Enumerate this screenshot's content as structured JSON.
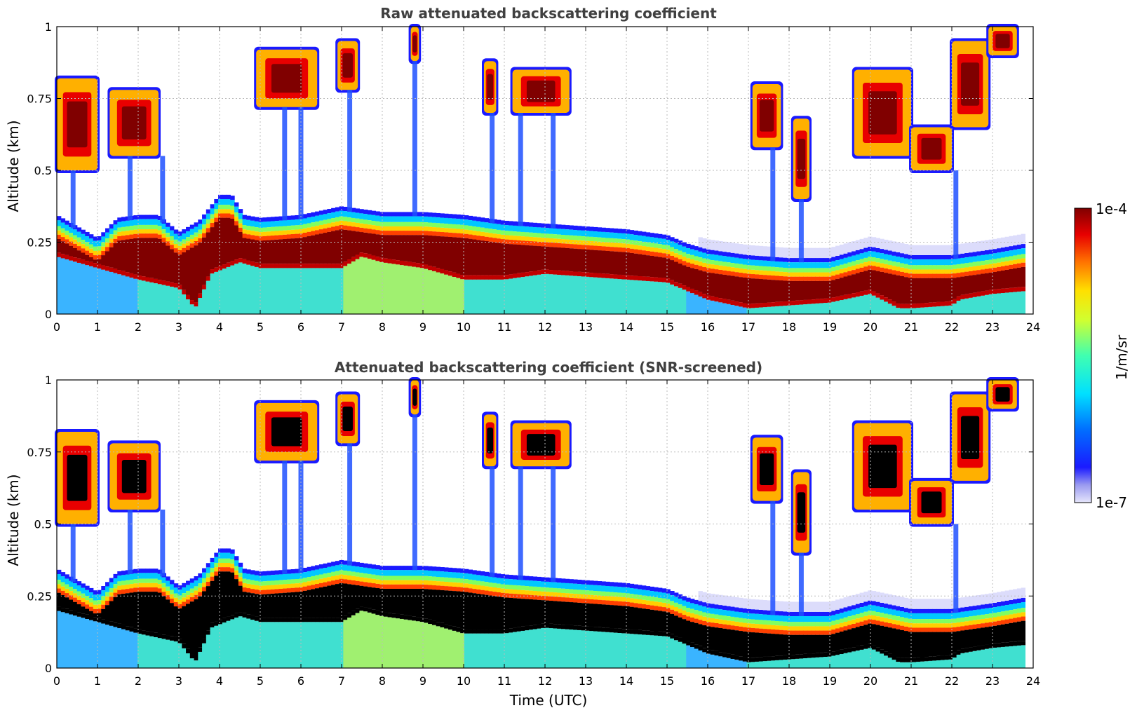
{
  "chart_data": [
    {
      "type": "heatmap",
      "title": "Raw attenuated backscattering coefficient",
      "xlabel": "",
      "ylabel": "Altitude (km)",
      "xlim": [
        0,
        24
      ],
      "ylim": [
        0,
        1
      ],
      "xticks": [
        "0",
        "1",
        "2",
        "3",
        "4",
        "5",
        "6",
        "7",
        "8",
        "9",
        "10",
        "11",
        "12",
        "13",
        "14",
        "15",
        "16",
        "17",
        "18",
        "19",
        "20",
        "21",
        "22",
        "23",
        "24"
      ],
      "yticks": [
        "0",
        "0.25",
        "0.5",
        "0.75",
        "1"
      ],
      "grid": true,
      "screened": false,
      "boundary_layer_top_km": [
        [
          0,
          0.33
        ],
        [
          0.5,
          0.29
        ],
        [
          1,
          0.25
        ],
        [
          1.5,
          0.32
        ],
        [
          2,
          0.33
        ],
        [
          2.5,
          0.33
        ],
        [
          3,
          0.27
        ],
        [
          3.5,
          0.31
        ],
        [
          4,
          0.4
        ],
        [
          4.3,
          0.4
        ],
        [
          4.6,
          0.33
        ],
        [
          5,
          0.32
        ],
        [
          6,
          0.33
        ],
        [
          7,
          0.36
        ],
        [
          8,
          0.34
        ],
        [
          9,
          0.34
        ],
        [
          10,
          0.33
        ],
        [
          11,
          0.31
        ],
        [
          12,
          0.3
        ],
        [
          13,
          0.29
        ],
        [
          14,
          0.28
        ],
        [
          15,
          0.26
        ],
        [
          15.5,
          0.23
        ],
        [
          16,
          0.21
        ],
        [
          17,
          0.19
        ],
        [
          18,
          0.18
        ],
        [
          19,
          0.18
        ],
        [
          20,
          0.22
        ],
        [
          21,
          0.19
        ],
        [
          22,
          0.19
        ],
        [
          23,
          0.21
        ],
        [
          23.8,
          0.23
        ]
      ],
      "dense_layer_center_km": [
        [
          0,
          0.26
        ],
        [
          1,
          0.22
        ],
        [
          2,
          0.18
        ],
        [
          3,
          0.15
        ],
        [
          3.4,
          0.08
        ],
        [
          3.8,
          0.2
        ],
        [
          4.5,
          0.24
        ],
        [
          5,
          0.22
        ],
        [
          6,
          0.22
        ],
        [
          7,
          0.22
        ],
        [
          7.5,
          0.26
        ],
        [
          8,
          0.24
        ],
        [
          9,
          0.22
        ],
        [
          10,
          0.18
        ],
        [
          11,
          0.18
        ],
        [
          12,
          0.2
        ],
        [
          13,
          0.19
        ],
        [
          14,
          0.18
        ],
        [
          15,
          0.17
        ],
        [
          16,
          0.11
        ],
        [
          17,
          0.08
        ],
        [
          18,
          0.09
        ],
        [
          19,
          0.1
        ],
        [
          20,
          0.13
        ],
        [
          20.7,
          0.08
        ],
        [
          21,
          0.08
        ],
        [
          22,
          0.09
        ],
        [
          22.2,
          0.11
        ],
        [
          23,
          0.13
        ],
        [
          23.8,
          0.14
        ]
      ],
      "cloud_patches": [
        {
          "t": [
            0.0,
            1.0
          ],
          "alt": [
            0.5,
            0.82
          ],
          "intensity": "high"
        },
        {
          "t": [
            1.3,
            2.5
          ],
          "alt": [
            0.55,
            0.78
          ],
          "intensity": "high"
        },
        {
          "t": [
            4.9,
            6.4
          ],
          "alt": [
            0.72,
            0.92
          ],
          "intensity": "high"
        },
        {
          "t": [
            6.9,
            7.4
          ],
          "alt": [
            0.78,
            0.95
          ],
          "intensity": "high"
        },
        {
          "t": [
            8.7,
            8.9
          ],
          "alt": [
            0.88,
            1.0
          ],
          "intensity": "high"
        },
        {
          "t": [
            10.5,
            10.8
          ],
          "alt": [
            0.7,
            0.88
          ],
          "intensity": "high"
        },
        {
          "t": [
            11.2,
            12.6
          ],
          "alt": [
            0.7,
            0.85
          ],
          "intensity": "high"
        },
        {
          "t": [
            17.1,
            17.8
          ],
          "alt": [
            0.58,
            0.8
          ],
          "intensity": "high"
        },
        {
          "t": [
            18.1,
            18.5
          ],
          "alt": [
            0.4,
            0.68
          ],
          "intensity": "high"
        },
        {
          "t": [
            19.6,
            21.0
          ],
          "alt": [
            0.55,
            0.85
          ],
          "intensity": "high"
        },
        {
          "t": [
            21.0,
            22.0
          ],
          "alt": [
            0.5,
            0.65
          ],
          "intensity": "high"
        },
        {
          "t": [
            22.0,
            22.9
          ],
          "alt": [
            0.65,
            0.95
          ],
          "intensity": "high"
        },
        {
          "t": [
            22.9,
            23.6
          ],
          "alt": [
            0.9,
            1.0
          ],
          "intensity": "high"
        }
      ],
      "colorbar": {
        "label": "1/m/sr",
        "min": "1e-7",
        "max": "1e-4",
        "colormap": "jet",
        "scale": "log"
      }
    },
    {
      "type": "heatmap",
      "title": "Attenuated backscattering coefficient (SNR-screened)",
      "xlabel": "Time (UTC)",
      "ylabel": "Altitude (km)",
      "xlim": [
        0,
        24
      ],
      "ylim": [
        0,
        1
      ],
      "xticks": [
        "0",
        "1",
        "2",
        "3",
        "4",
        "5",
        "6",
        "7",
        "8",
        "9",
        "10",
        "11",
        "12",
        "13",
        "14",
        "15",
        "16",
        "17",
        "18",
        "19",
        "20",
        "21",
        "22",
        "23",
        "24"
      ],
      "yticks": [
        "0",
        "0.25",
        "0.5",
        "0.75",
        "1"
      ],
      "grid": true,
      "screened": true,
      "saturated_color": "#000000"
    }
  ],
  "colors": {
    "background": "#ffffff",
    "title": "#404040",
    "grid": "#bbbbbb",
    "saturated": "#000000"
  }
}
